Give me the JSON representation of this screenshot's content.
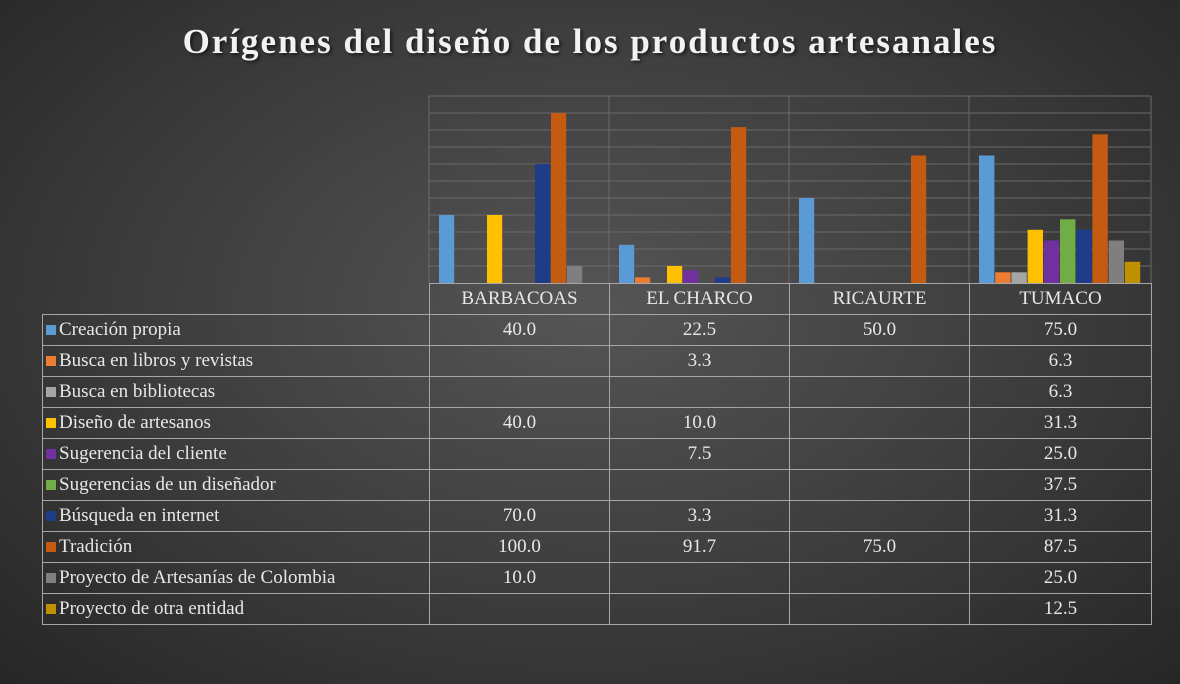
{
  "chart_data": {
    "type": "bar",
    "title": "Orígenes del diseño de los productos artesanales",
    "categories": [
      "BARBACOAS",
      "EL CHARCO",
      "RICAURTE",
      "TUMACO"
    ],
    "ylim": [
      0,
      110
    ],
    "grid": true,
    "legend": "data-table",
    "series": [
      {
        "name": "Creación propia",
        "color": "#5b9bd5",
        "values": [
          40.0,
          22.5,
          50.0,
          75.0
        ],
        "labels": [
          "40.0",
          "22.5",
          "50.0",
          "75.0"
        ]
      },
      {
        "name": "Busca en libros y revistas",
        "color": "#ed7d31",
        "values": [
          null,
          3.3,
          null,
          6.3
        ],
        "labels": [
          "",
          "3.3",
          "",
          "6.3"
        ]
      },
      {
        "name": "Busca en bibliotecas",
        "color": "#a5a5a5",
        "values": [
          null,
          null,
          null,
          6.3
        ],
        "labels": [
          "",
          "",
          "",
          "6.3"
        ]
      },
      {
        "name": "Diseño de artesanos",
        "color": "#ffc000",
        "values": [
          40.0,
          10.0,
          null,
          31.3
        ],
        "labels": [
          "40.0",
          "10.0",
          "",
          "31.3"
        ]
      },
      {
        "name": "Sugerencia del cliente",
        "color": "#7030a0",
        "values": [
          null,
          7.5,
          null,
          25.0
        ],
        "labels": [
          "",
          "7.5",
          "",
          "25.0"
        ]
      },
      {
        "name": "Sugerencias de un diseñador",
        "color": "#70ad47",
        "values": [
          null,
          null,
          null,
          37.5
        ],
        "labels": [
          "",
          "",
          "",
          "37.5"
        ]
      },
      {
        "name": "Búsqueda en internet",
        "color": "#1f3c88",
        "values": [
          70.0,
          3.3,
          null,
          31.3
        ],
        "labels": [
          "70.0",
          "3.3",
          "",
          "31.3"
        ]
      },
      {
        "name": "Tradición",
        "color": "#c55a11",
        "values": [
          100.0,
          91.7,
          75.0,
          87.5
        ],
        "labels": [
          "100.0",
          "91.7",
          "75.0",
          "87.5"
        ]
      },
      {
        "name": "Proyecto de Artesanías de Colombia",
        "color": "#7f7f7f",
        "values": [
          10.0,
          null,
          null,
          25.0
        ],
        "labels": [
          "10.0",
          "",
          "",
          "25.0"
        ]
      },
      {
        "name": "Proyecto de otra entidad",
        "color": "#bf9000",
        "values": [
          null,
          null,
          null,
          12.5
        ],
        "labels": [
          "",
          "",
          "",
          "12.5"
        ]
      }
    ]
  }
}
